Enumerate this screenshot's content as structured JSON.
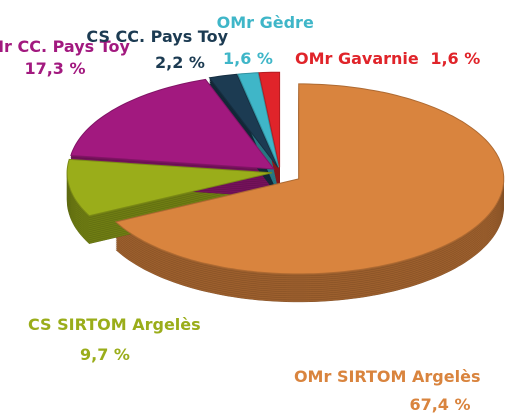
{
  "chart_data": {
    "type": "pie",
    "categories": [
      "OMr SIRTOM Argelès",
      "CS SIRTOM Argelès",
      "OMr CC. Pays Toy",
      "CS CC. Pays Toy",
      "OMr Gèdre",
      "OMr Gavarnie"
    ],
    "values": [
      67.4,
      9.7,
      17.3,
      2.2,
      1.6,
      1.6
    ],
    "value_labels": [
      "67,4 %",
      "9,7 %",
      "17,3 %",
      "2,2 %",
      "1,6 %",
      "1,6 %"
    ],
    "colors": [
      "#d9843e",
      "#9aad1a",
      "#a2197f",
      "#1c3b52",
      "#3fb6c8",
      "#e0242a"
    ]
  }
}
